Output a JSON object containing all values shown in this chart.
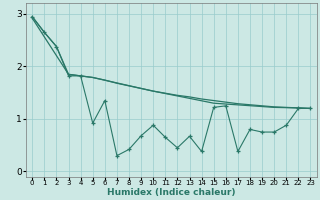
{
  "xlabel": "Humidex (Indice chaleur)",
  "bg_color": "#cce8e4",
  "line_color": "#2a7868",
  "grid_color": "#99cccc",
  "xlim": [
    -0.5,
    23.5
  ],
  "ylim": [
    -0.1,
    3.2
  ],
  "xticks": [
    0,
    1,
    2,
    3,
    4,
    5,
    6,
    7,
    8,
    9,
    10,
    11,
    12,
    13,
    14,
    15,
    16,
    17,
    18,
    19,
    20,
    21,
    22,
    23
  ],
  "yticks": [
    0,
    1,
    2,
    3
  ],
  "smooth_top": [
    [
      0,
      2.95
    ],
    [
      1,
      2.65
    ],
    [
      2,
      2.38
    ],
    [
      3,
      1.85
    ],
    [
      4,
      1.82
    ],
    [
      5,
      1.79
    ],
    [
      6,
      1.74
    ],
    [
      7,
      1.68
    ],
    [
      8,
      1.63
    ],
    [
      9,
      1.58
    ],
    [
      10,
      1.53
    ],
    [
      11,
      1.49
    ],
    [
      12,
      1.45
    ],
    [
      13,
      1.42
    ],
    [
      14,
      1.38
    ],
    [
      15,
      1.35
    ],
    [
      16,
      1.32
    ],
    [
      17,
      1.29
    ],
    [
      18,
      1.27
    ],
    [
      19,
      1.25
    ],
    [
      20,
      1.23
    ],
    [
      21,
      1.22
    ],
    [
      22,
      1.21
    ],
    [
      23,
      1.2
    ]
  ],
  "smooth_bottom": [
    [
      0,
      2.92
    ],
    [
      3,
      1.85
    ],
    [
      5,
      1.79
    ],
    [
      10,
      1.53
    ],
    [
      15,
      1.3
    ],
    [
      20,
      1.22
    ],
    [
      22,
      1.21
    ],
    [
      23,
      1.2
    ]
  ],
  "zigzag": [
    [
      0,
      2.95
    ],
    [
      1,
      2.65
    ],
    [
      2,
      2.38
    ],
    [
      3,
      1.82
    ],
    [
      4,
      1.82
    ],
    [
      5,
      0.92
    ],
    [
      6,
      1.35
    ],
    [
      7,
      0.3
    ],
    [
      8,
      0.42
    ],
    [
      9,
      0.68
    ],
    [
      10,
      0.88
    ],
    [
      11,
      0.65
    ],
    [
      12,
      0.45
    ],
    [
      13,
      0.67
    ],
    [
      14,
      0.38
    ],
    [
      15,
      1.22
    ],
    [
      16,
      1.25
    ],
    [
      17,
      0.38
    ],
    [
      18,
      0.8
    ],
    [
      19,
      0.75
    ],
    [
      20,
      0.75
    ],
    [
      21,
      0.88
    ],
    [
      22,
      1.2
    ],
    [
      23,
      1.2
    ]
  ]
}
